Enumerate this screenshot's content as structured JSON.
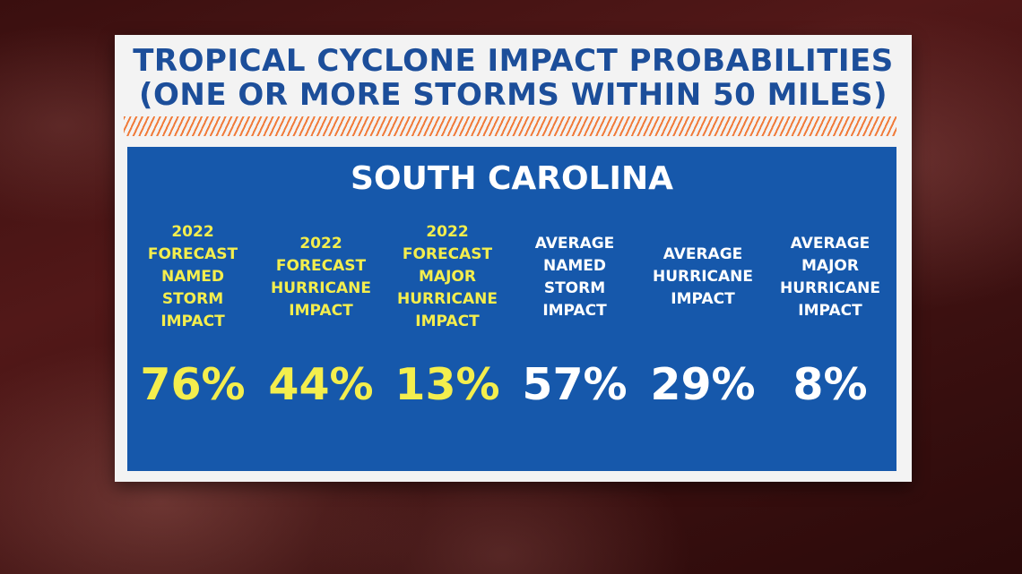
{
  "chart_data": {
    "type": "table",
    "title": "TROPICAL CYCLONE IMPACT PROBABILITIES\n(ONE OR MORE STORMS WITHIN 50 MILES)",
    "subtitle": "SOUTH CAROLINA",
    "unit": "%",
    "columns": [
      {
        "label": "2022\nFORECAST\nNAMED\nSTORM\nIMPACT",
        "value": 76,
        "display": "76%",
        "color": "#f4ee4d"
      },
      {
        "label": "2022\nFORECAST\nHURRICANE\nIMPACT",
        "value": 44,
        "display": "44%",
        "color": "#f4ee4d"
      },
      {
        "label": "2022\nFORECAST\nMAJOR\nHURRICANE\nIMPACT",
        "value": 13,
        "display": "13%",
        "color": "#f4ee4d"
      },
      {
        "label": "AVERAGE\nNAMED\nSTORM\nIMPACT",
        "value": 57,
        "display": "57%",
        "color": "#ffffff"
      },
      {
        "label": "AVERAGE\nHURRICANE\nIMPACT",
        "value": 29,
        "display": "29%",
        "color": "#ffffff"
      },
      {
        "label": "AVERAGE\nMAJOR\nHURRICANE\nIMPACT",
        "value": 8,
        "display": "8%",
        "color": "#ffffff"
      }
    ]
  },
  "colors": {
    "title_blue": "#1c4e9a",
    "panel_blue": "#1658ab",
    "forecast_yellow": "#f4ee4d",
    "average_white": "#ffffff",
    "accent_orange": "#f07b3a"
  }
}
